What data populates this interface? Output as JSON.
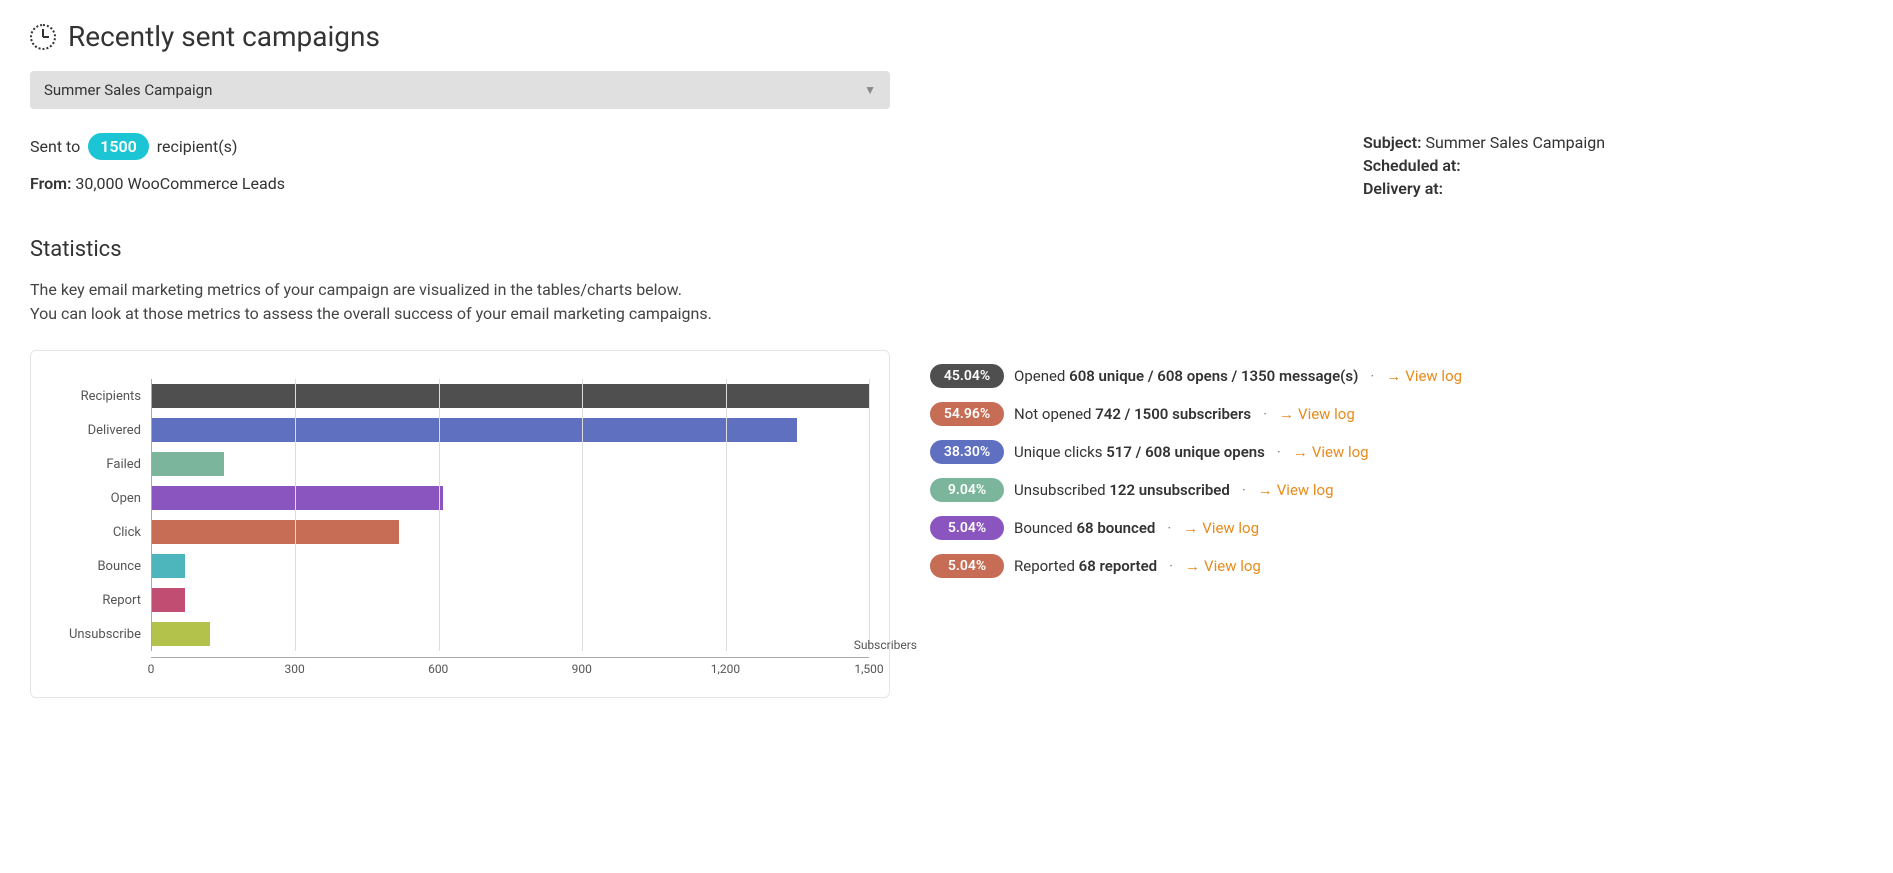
{
  "header": {
    "title": "Recently sent campaigns"
  },
  "select": {
    "value": "Summer Sales Campaign"
  },
  "summary": {
    "sent_label_prefix": "Sent to ",
    "recipient_count": "1500",
    "sent_label_suffix": " recipient(s)",
    "badge_color": "#1bc5d4",
    "from_label": "From:",
    "from_value": "30,000 WooCommerce Leads",
    "subject_label": "Subject:",
    "subject_value": "Summer Sales Campaign",
    "scheduled_label": "Scheduled at:",
    "scheduled_value": "",
    "delivery_label": "Delivery at:",
    "delivery_value": ""
  },
  "stats": {
    "heading": "Statistics",
    "desc_line1": "The key email marketing metrics of your campaign are visualized in the tables/charts below.",
    "desc_line2": "You can look at those metrics to assess the overall success of your email marketing campaigns."
  },
  "chart": {
    "type": "bar-horizontal",
    "x_max": 1500,
    "x_ticks": [
      0,
      300,
      600,
      900,
      1200,
      1500
    ],
    "x_title": "Subscribers",
    "grid_color": "#dddddd",
    "axis_color": "#aaaaaa",
    "label_fontsize": 13,
    "bars": [
      {
        "label": "Recipients",
        "value": 1500,
        "color": "#4f4f4f"
      },
      {
        "label": "Delivered",
        "value": 1350,
        "color": "#5f70c0"
      },
      {
        "label": "Failed",
        "value": 150,
        "color": "#7bb59b"
      },
      {
        "label": "Open",
        "value": 608,
        "color": "#8a55bf"
      },
      {
        "label": "Click",
        "value": 517,
        "color": "#c76d55"
      },
      {
        "label": "Bounce",
        "value": 68,
        "color": "#4db6bd"
      },
      {
        "label": "Report",
        "value": 68,
        "color": "#c14d73"
      },
      {
        "label": "Unsubscribe",
        "value": 122,
        "color": "#b3c24a"
      }
    ]
  },
  "metrics": [
    {
      "pct": "45.04%",
      "color": "#4f4f4f",
      "label": "Opened",
      "bold": "608 unique / 608 opens / 1350 message(s)",
      "link": "View log"
    },
    {
      "pct": "54.96%",
      "color": "#c76d55",
      "label": "Not opened",
      "bold": "742 / 1500 subscribers",
      "link": "View log"
    },
    {
      "pct": "38.30%",
      "color": "#5f70c0",
      "label": "Unique clicks",
      "bold": "517 / 608 unique opens",
      "link": "View log"
    },
    {
      "pct": "9.04%",
      "color": "#7bb59b",
      "label": "Unsubscribed",
      "bold": "122 unsubscribed",
      "link": "View log"
    },
    {
      "pct": "5.04%",
      "color": "#8a55bf",
      "label": "Bounced",
      "bold": "68 bounced",
      "link": "View log"
    },
    {
      "pct": "5.04%",
      "color": "#c76d55",
      "label": "Reported",
      "bold": "68 reported",
      "link": "View log"
    }
  ],
  "link_color": "#e88b1c"
}
